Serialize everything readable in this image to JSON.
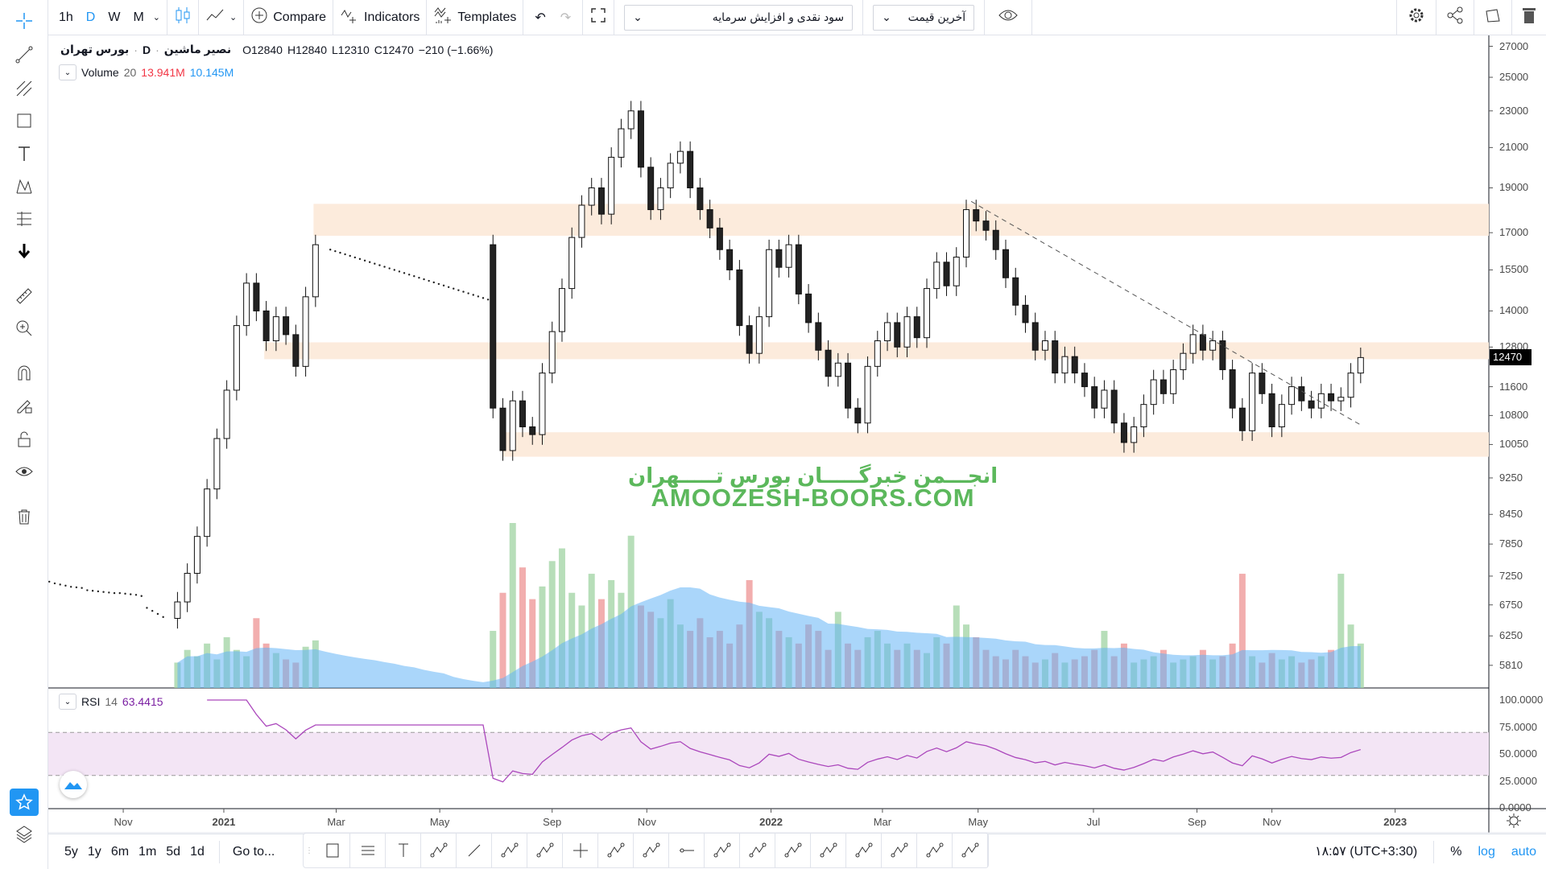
{
  "toolbar": {
    "intervals": [
      "1h",
      "D",
      "W",
      "M"
    ],
    "active_interval": "D",
    "compare_label": "Compare",
    "indicators_label": "Indicators",
    "templates_label": "Templates",
    "adjustment_select": "سود نقدی و افزایش سرمایه",
    "price_source_select": "آخرین قیمت"
  },
  "legend": {
    "symbol": "نصیر ماشین",
    "interval": "D",
    "exchange": "بورس تهران",
    "o_label": "O",
    "o": "12840",
    "h_label": "H",
    "h": "12840",
    "l_label": "L",
    "l": "12310",
    "c_label": "C",
    "c": "12470",
    "change": "−210 (−1.66%)",
    "volume_name": "Volume",
    "volume_period": "20",
    "volume_value": "13.941M",
    "volume_ma": "10.145M",
    "rsi_name": "RSI",
    "rsi_period": "14",
    "rsi_value": "63.4415"
  },
  "watermark": {
    "line1": "انجـــمن خبرگـــــان بورس تـــــهران",
    "line2": "AMOOZESH-BOORS.COM"
  },
  "bottom": {
    "ranges": [
      "5y",
      "1y",
      "6m",
      "1m",
      "5d",
      "1d"
    ],
    "goto": "Go to...",
    "clock": "۱۸:۵۷ (UTC+3:30)",
    "percent": "%",
    "log": "log",
    "auto": "auto"
  },
  "colors": {
    "accent": "#2196f3",
    "zone": "#fcebdc",
    "rsi_line": "#ab47bc",
    "rsi_band": "#f3e5f5",
    "vol_up": "#a5d6a7",
    "vol_down": "#ef9a9a",
    "vol_ma": "#64b5f6",
    "watermark": "#5cb85c",
    "volume_value": "#f23645",
    "rsi_value": "#7b1fa2"
  },
  "chart_data": {
    "type": "candlestick",
    "scale": "log",
    "ylim": [
      5600,
      28000
    ],
    "last_price": "12470",
    "price_ticks": [
      "27000",
      "25000",
      "23000",
      "21000",
      "19000",
      "17000",
      "15500",
      "14000",
      "12800",
      "11600",
      "10800",
      "10050",
      "9250",
      "8450",
      "7850",
      "7250",
      "6750",
      "6250",
      "5810"
    ],
    "rsi_ticks": [
      "100.0000",
      "75.0000",
      "50.0000",
      "25.0000",
      "0.0000"
    ],
    "rsi_band": [
      30,
      70
    ],
    "time_ticks": [
      {
        "label": "Nov",
        "at": -5.5
      },
      {
        "label": "2021",
        "at": 4.7,
        "year": true
      },
      {
        "label": "Mar",
        "at": 16.1
      },
      {
        "label": "May",
        "at": 26.6
      },
      {
        "label": "Sep",
        "at": 38
      },
      {
        "label": "Nov",
        "at": 47.6
      },
      {
        "label": "2022",
        "at": 60.2,
        "year": true
      },
      {
        "label": "Mar",
        "at": 71.5
      },
      {
        "label": "May",
        "at": 81.2
      },
      {
        "label": "Jul",
        "at": 92.9
      },
      {
        "label": "Sep",
        "at": 103.4
      },
      {
        "label": "Nov",
        "at": 111
      },
      {
        "label": "2023",
        "at": 123.5,
        "year": true
      }
    ],
    "closes": [
      6800,
      7300,
      8000,
      9000,
      10200,
      11500,
      13500,
      15000,
      14000,
      13000,
      13800,
      13200,
      12200,
      14500,
      16500,
      null,
      null,
      null,
      null,
      null,
      null,
      null,
      null,
      null,
      null,
      null,
      null,
      null,
      null,
      null,
      null,
      null,
      11000,
      9900,
      11200,
      10500,
      10300,
      12000,
      13300,
      14800,
      16800,
      18200,
      19000,
      17800,
      20500,
      22000,
      23000,
      20000,
      18000,
      19000,
      20200,
      20800,
      19000,
      18000,
      17200,
      16300,
      15500,
      13500,
      12600,
      13800,
      16300,
      15600,
      16500,
      14600,
      13600,
      12700,
      11900,
      12300,
      11000,
      10600,
      12200,
      13000,
      13600,
      12800,
      13800,
      13100,
      14800,
      15800,
      14900,
      16000,
      18000,
      17500,
      17100,
      16300,
      15200,
      14200,
      13600,
      12700,
      13000,
      12000,
      12500,
      12000,
      11600,
      11000,
      11500,
      10600,
      10100,
      10500,
      11100,
      11800,
      11400,
      12100,
      12600,
      13200,
      12700,
      13000,
      12100,
      11000,
      10400,
      12000,
      11400,
      10500,
      11100,
      11600,
      11200,
      11000,
      11400,
      11200,
      11300,
      12000,
      12470
    ],
    "volumes": [
      8,
      12,
      10,
      14,
      9,
      16,
      12,
      10,
      22,
      14,
      11,
      9,
      8,
      13,
      15,
      0,
      0,
      0,
      0,
      0,
      0,
      0,
      0,
      0,
      0,
      0,
      0,
      0,
      0,
      0,
      0,
      0,
      18,
      30,
      52,
      38,
      28,
      32,
      40,
      44,
      30,
      26,
      36,
      28,
      34,
      30,
      48,
      26,
      24,
      22,
      28,
      20,
      18,
      22,
      16,
      18,
      14,
      20,
      34,
      24,
      22,
      18,
      16,
      14,
      20,
      18,
      12,
      24,
      14,
      12,
      16,
      18,
      14,
      12,
      14,
      12,
      11,
      16,
      14,
      26,
      20,
      16,
      12,
      10,
      9,
      12,
      10,
      8,
      9,
      11,
      8,
      9,
      10,
      12,
      18,
      10,
      14,
      8,
      9,
      10,
      12,
      8,
      9,
      10,
      12,
      9,
      10,
      14,
      36,
      10,
      8,
      11,
      9,
      10,
      8,
      9,
      10,
      12,
      36,
      20,
      14
    ],
    "pre_dots": [
      7150,
      7120,
      7100,
      7080,
      7060,
      7050,
      7040,
      7000,
      6990,
      6980,
      6970,
      6960,
      6950,
      6950,
      6940,
      6930,
      6920,
      6900,
      6700,
      6650,
      6600,
      6550
    ],
    "halt_dots": {
      "from_index": 15.5,
      "to_index": 31.5,
      "start_price": 16300,
      "end_price": 14400
    },
    "zones": [
      {
        "from_index": 13.8,
        "low": 16870,
        "high": 18260
      },
      {
        "from_index": 8.8,
        "low": 12420,
        "high": 12950
      },
      {
        "from_index": 33,
        "low": 9750,
        "high": 10360
      }
    ],
    "trendline": {
      "from_index": 80.5,
      "from_price": 18370,
      "to_index": 120,
      "to_price": 10550
    }
  }
}
